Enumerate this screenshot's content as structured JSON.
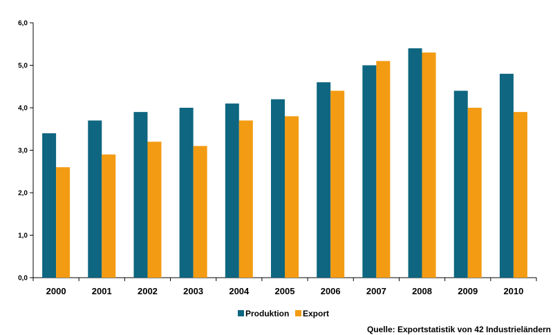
{
  "chart_data": {
    "type": "bar",
    "categories": [
      "2000",
      "2001",
      "2002",
      "2003",
      "2004",
      "2005",
      "2006",
      "2007",
      "2008",
      "2009",
      "2010"
    ],
    "series": [
      {
        "name": "Produktion",
        "color": "#0e6680",
        "values": [
          3.4,
          3.7,
          3.9,
          4.0,
          4.1,
          4.2,
          4.6,
          5.0,
          5.4,
          4.4,
          4.8
        ]
      },
      {
        "name": "Export",
        "color": "#f39b12",
        "values": [
          2.6,
          2.9,
          3.2,
          3.1,
          3.7,
          3.8,
          4.4,
          5.1,
          5.3,
          4.0,
          3.9
        ]
      }
    ],
    "ylim": [
      0,
      6
    ],
    "yticks": [
      0,
      1,
      2,
      3,
      4,
      5,
      6
    ],
    "ytick_labels": [
      "0,0",
      "1,0",
      "2,0",
      "3,0",
      "4,0",
      "5,0",
      "6,0"
    ],
    "grid": false,
    "legend_position": "bottom-center",
    "annotation": "Quelle: Exportstatistik von 42 Industrieländern"
  }
}
